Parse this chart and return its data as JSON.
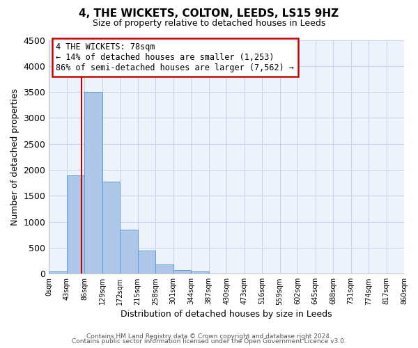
{
  "title": "4, THE WICKETS, COLTON, LEEDS, LS15 9HZ",
  "subtitle": "Size of property relative to detached houses in Leeds",
  "xlabel": "Distribution of detached houses by size in Leeds",
  "ylabel": "Number of detached properties",
  "bar_values": [
    50,
    1900,
    3500,
    1775,
    850,
    450,
    175,
    75,
    50,
    0,
    0,
    0,
    0,
    0,
    0,
    0,
    0,
    0,
    0,
    0
  ],
  "bin_labels": [
    "0sqm",
    "43sqm",
    "86sqm",
    "129sqm",
    "172sqm",
    "215sqm",
    "258sqm",
    "301sqm",
    "344sqm",
    "387sqm",
    "430sqm",
    "473sqm",
    "516sqm",
    "559sqm",
    "602sqm",
    "645sqm",
    "688sqm",
    "731sqm",
    "774sqm",
    "817sqm",
    "860sqm"
  ],
  "bar_color": "#aec6e8",
  "bar_edge_color": "#5a9fd4",
  "vline_color": "#cc0000",
  "annotation_title": "4 THE WICKETS: 78sqm",
  "annotation_line1": "← 14% of detached houses are smaller (1,253)",
  "annotation_line2": "86% of semi-detached houses are larger (7,562) →",
  "annotation_box_color": "#cc0000",
  "ylim": [
    0,
    4500
  ],
  "yticks": [
    0,
    500,
    1000,
    1500,
    2000,
    2500,
    3000,
    3500,
    4000,
    4500
  ],
  "footer1": "Contains HM Land Registry data © Crown copyright and database right 2024.",
  "footer2": "Contains public sector information licensed under the Open Government Licence v3.0.",
  "background_color": "#eef2fb",
  "grid_color": "#c8d4ee",
  "fig_bg": "#ffffff"
}
